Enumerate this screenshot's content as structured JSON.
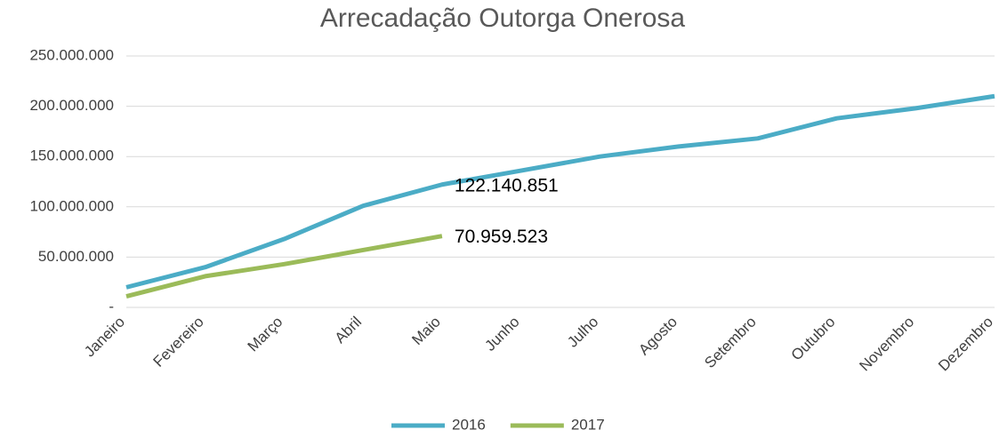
{
  "chart_data": {
    "type": "line",
    "title": "Arrecadação Outorga Onerosa",
    "categories": [
      "Janeiro",
      "Fevereiro",
      "Março",
      "Abril",
      "Maio",
      "Junho",
      "Julho",
      "Agosto",
      "Setembro",
      "Outubro",
      "Novembro",
      "Dezembro"
    ],
    "series": [
      {
        "name": "2016",
        "color": "#4bacc6",
        "values": [
          20000000,
          40000000,
          68000000,
          101000000,
          122140851,
          136000000,
          150000000,
          160000000,
          168000000,
          188000000,
          198000000,
          210000000
        ],
        "value_labels": [
          null,
          null,
          null,
          null,
          "122.140.851",
          null,
          null,
          null,
          null,
          null,
          null,
          null
        ]
      },
      {
        "name": "2017",
        "color": "#9bbb59",
        "values": [
          11000000,
          31000000,
          43000000,
          57000000,
          70959523,
          null,
          null,
          null,
          null,
          null,
          null,
          null
        ],
        "value_labels": [
          null,
          null,
          null,
          null,
          "70.959.523",
          null,
          null,
          null,
          null,
          null,
          null,
          null
        ]
      }
    ],
    "ylim": [
      0,
      250000000
    ],
    "yticks": [
      {
        "value": 0,
        "label": "-"
      },
      {
        "value": 50000000,
        "label": "50.000.000"
      },
      {
        "value": 100000000,
        "label": "100.000.000"
      },
      {
        "value": 150000000,
        "label": "150.000.000"
      },
      {
        "value": 200000000,
        "label": "200.000.000"
      },
      {
        "value": 250000000,
        "label": "250.000.000"
      }
    ],
    "grid": true,
    "legend": "bottom"
  }
}
